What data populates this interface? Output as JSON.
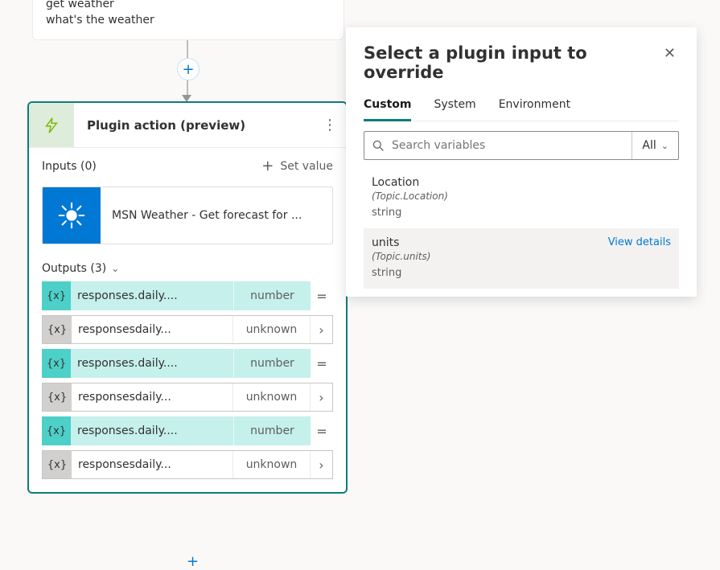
{
  "trigger": {
    "line1": "get weather",
    "line2": "what's the weather"
  },
  "card": {
    "title": "Plugin action (preview)",
    "inputs_label": "Inputs (0)",
    "set_value_label": "Set value",
    "connector_label": "MSN Weather - Get forecast for ...",
    "outputs_label": "Outputs (3)",
    "outputs": [
      {
        "name": "responses.daily....",
        "type": "number",
        "style": "teal",
        "trailing": "eq"
      },
      {
        "name": "responsesdaily...",
        "type": "unknown",
        "style": "gray",
        "trailing": "chev"
      },
      {
        "name": "responses.daily....",
        "type": "number",
        "style": "teal",
        "trailing": "eq"
      },
      {
        "name": "responsesdaily...",
        "type": "unknown",
        "style": "gray",
        "trailing": "chev"
      },
      {
        "name": "responses.daily....",
        "type": "number",
        "style": "teal",
        "trailing": "eq"
      },
      {
        "name": "responsesdaily...",
        "type": "unknown",
        "style": "gray",
        "trailing": "chev"
      }
    ]
  },
  "panel": {
    "title": "Select a plugin input to override",
    "tabs": {
      "custom": "Custom",
      "system": "System",
      "environment": "Environment"
    },
    "search_placeholder": "Search variables",
    "filter_label": "All",
    "items": [
      {
        "name": "Location",
        "path": "(Topic.Location)",
        "type": "string",
        "hover": false
      },
      {
        "name": "units",
        "path": "(Topic.units)",
        "type": "string",
        "hover": true
      }
    ],
    "view_details": "View details"
  },
  "glyphs": {
    "var": "{x}",
    "plus": "+",
    "eq": "=",
    "chev_right": "›",
    "chev_down": "⌄",
    "close": "✕"
  },
  "colors": {
    "brand": "#0e7c7b",
    "link": "#0078d4",
    "teal_chip": "#4dd0c8",
    "teal_bg": "#c5f0ec",
    "lightgreen": "#deecdc",
    "green_stroke": "#7cba00"
  }
}
